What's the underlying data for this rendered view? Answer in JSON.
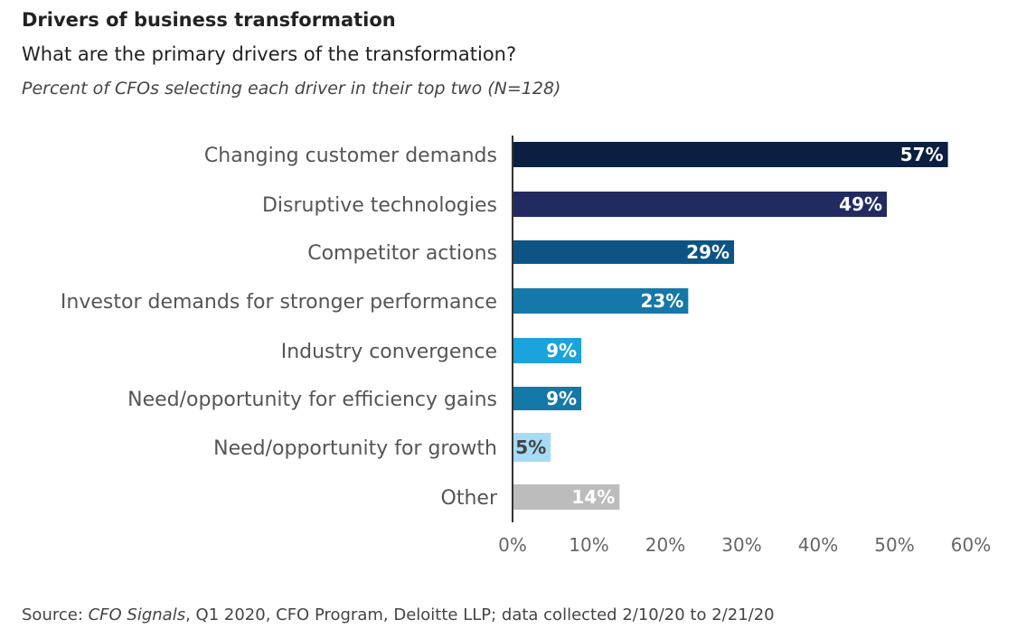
{
  "chart_data": {
    "type": "bar",
    "orientation": "horizontal",
    "title": "Drivers of business transformation",
    "subtitle": "What are the primary drivers of the transformation?",
    "note": "Percent of CFOs selecting each driver in their top two (N=128)",
    "categories": [
      "Changing customer demands",
      "Disruptive technologies",
      "Competitor actions",
      "Investor demands for stronger performance",
      "Industry convergence",
      "Need/opportunity for efficiency gains",
      "Need/opportunity for growth",
      "Other"
    ],
    "values": [
      57,
      49,
      29,
      23,
      9,
      9,
      5,
      14
    ],
    "data_labels": [
      "57%",
      "49%",
      "29%",
      "23%",
      "9%",
      "9%",
      "5%",
      "14%"
    ],
    "colors": [
      "#0b1f40",
      "#222b61",
      "#0b5485",
      "#1478a8",
      "#1aa3dc",
      "#1478a8",
      "#a6dbf5",
      "#bcbcbc"
    ],
    "label_colors": [
      "#ffffff",
      "#ffffff",
      "#ffffff",
      "#ffffff",
      "#ffffff",
      "#ffffff",
      "#444444",
      "#ffffff"
    ],
    "xlim": [
      0,
      60
    ],
    "xticks": [
      "0%",
      "10%",
      "20%",
      "30%",
      "40%",
      "50%",
      "60%"
    ],
    "grid": false
  },
  "source": {
    "prefix": "Source: ",
    "italic": "CFO Signals",
    "rest": ", Q1 2020, CFO Program, Deloitte LLP; data collected 2/10/20 to 2/21/20"
  }
}
